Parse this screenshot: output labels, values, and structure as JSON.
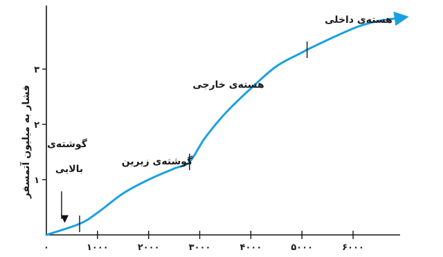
{
  "chart_data": {
    "type": "line",
    "title": "",
    "xlabel": "",
    "ylabel": "فشار به میلیون آتمسفر",
    "xlim": [
      0,
      7000
    ],
    "ylim": [
      0,
      3.6
    ],
    "x_ticks": [
      {
        "value": 0,
        "label": "۰"
      },
      {
        "value": 1000,
        "label": "۱۰۰۰"
      },
      {
        "value": 2000,
        "label": "۲۰۰۰"
      },
      {
        "value": 3000,
        "label": "۳۰۰۰"
      },
      {
        "value": 4000,
        "label": "۴۰۰۰"
      },
      {
        "value": 5000,
        "label": "۵۰۰۰"
      },
      {
        "value": 6000,
        "label": "۶۰۰۰"
      }
    ],
    "y_ticks": [
      {
        "value": 1,
        "label": "۱"
      },
      {
        "value": 2,
        "label": "۲"
      },
      {
        "value": 3,
        "label": "۳"
      }
    ],
    "grid": false,
    "line_color": "#1aa0e0",
    "series": [
      {
        "x": [
          0,
          650,
          1000,
          1500,
          2000,
          2500,
          2800,
          3100,
          3500,
          4000,
          4500,
          5000,
          5100,
          5600,
          6100,
          6500,
          6950
        ],
        "y": [
          0,
          0.2,
          0.4,
          0.75,
          1.0,
          1.2,
          1.32,
          1.75,
          2.2,
          2.65,
          3.05,
          3.3,
          3.35,
          3.57,
          3.77,
          3.87,
          3.93
        ]
      }
    ],
    "boundaries": [
      {
        "x": 650,
        "y": 0.2
      },
      {
        "x": 2800,
        "y": 1.32
      },
      {
        "x": 5100,
        "y": 3.35
      }
    ],
    "annotations": [
      {
        "name": "upper-mantle",
        "lines": [
          "گوشته‌ی",
          "بالایی"
        ]
      },
      {
        "name": "lower-mantle",
        "lines": [
          "گوشته‌ی زیرین"
        ]
      },
      {
        "name": "outer-core",
        "lines": [
          "هسته‌ی خارجی"
        ]
      },
      {
        "name": "inner-core",
        "lines": [
          "هسته‌ی داخلی"
        ]
      }
    ]
  }
}
